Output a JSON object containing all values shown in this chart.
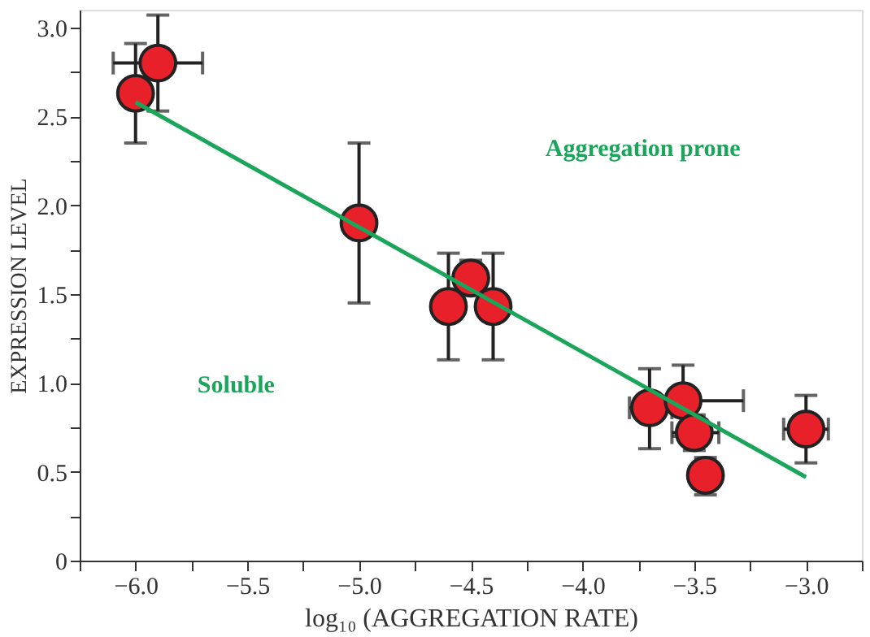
{
  "chart_data": {
    "type": "scatter",
    "xlabel": "log₁₀ (AGGREGATION RATE)",
    "ylabel": "EXPRESSION LEVEL",
    "annotations": [
      "Aggregation prone",
      "Soluble"
    ],
    "xlim": [
      -6.25,
      -2.75
    ],
    "ylim": [
      0,
      3.1
    ],
    "xticks": [
      {
        "value": -6.25,
        "label": null
      },
      {
        "value": -6.0,
        "label": "−6.0"
      },
      {
        "value": -5.75,
        "label": null
      },
      {
        "value": -5.5,
        "label": "−5.5"
      },
      {
        "value": -5.25,
        "label": null
      },
      {
        "value": -5.0,
        "label": "−5.0"
      },
      {
        "value": -4.75,
        "label": null
      },
      {
        "value": -4.5,
        "label": "−4.5"
      },
      {
        "value": -4.25,
        "label": null
      },
      {
        "value": -4.0,
        "label": "−4.0"
      },
      {
        "value": -3.75,
        "label": null
      },
      {
        "value": -3.5,
        "label": "−3.5"
      },
      {
        "value": -3.25,
        "label": null
      },
      {
        "value": -3.0,
        "label": "−3.0"
      },
      {
        "value": -2.75,
        "label": null
      }
    ],
    "yticks": [
      0,
      {
        "value": 0.25,
        "label": null
      },
      {
        "value": 0.5,
        "label": "0.5"
      },
      {
        "value": 0.75,
        "label": null
      },
      {
        "value": 1.0,
        "label": "1.0"
      },
      {
        "value": 1.25,
        "label": null
      },
      {
        "value": 1.5,
        "label": "1.5"
      },
      {
        "value": 1.75,
        "label": null
      },
      {
        "value": 2.0,
        "label": "2.0"
      },
      {
        "value": 2.25,
        "label": null
      },
      {
        "value": 2.5,
        "label": "2.5"
      },
      {
        "value": 2.75,
        "label": null
      },
      {
        "value": 3.0,
        "label": "3.0"
      }
    ],
    "grid": false,
    "series": [
      {
        "type": "line",
        "color": "#1aa55a",
        "x": [
          -6.0,
          -3.0
        ],
        "values": [
          2.58,
          0.47
        ],
        "marker": "none",
        "line_style": "solid"
      },
      {
        "color": "#e8202a",
        "marker": "circle",
        "x": [
          -6.0,
          -5.9,
          -5.0,
          -4.6,
          -4.5,
          -4.4,
          -3.7,
          -3.55,
          -3.5,
          -3.45,
          -3.0
        ],
        "values": [
          2.63,
          2.8,
          1.9,
          1.43,
          1.59,
          1.43,
          0.86,
          0.9,
          0.72,
          0.48,
          0.74
        ],
        "errors": [
          [
            2.35,
            2.91
          ],
          [
            2.53,
            3.07
          ],
          [
            1.45,
            2.35
          ],
          [
            1.13,
            1.73
          ],
          [
            1.5,
            1.69
          ],
          [
            1.13,
            1.73
          ],
          [
            0.63,
            1.08
          ],
          [
            0.7,
            1.1
          ],
          [
            0.62,
            0.82
          ],
          [
            0.37,
            0.58
          ],
          [
            0.55,
            0.93
          ]
        ],
        "xerrors": [
          null,
          [
            -6.1,
            -5.7
          ],
          null,
          null,
          null,
          null,
          [
            -3.79,
            -3.6
          ],
          [
            -3.6,
            -3.28
          ],
          [
            -3.6,
            -3.39
          ],
          null,
          [
            -3.1,
            -2.9
          ]
        ]
      }
    ]
  }
}
